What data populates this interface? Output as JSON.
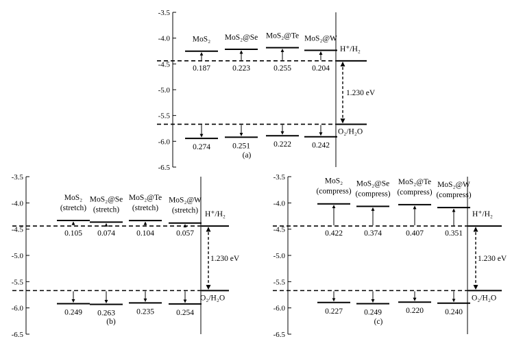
{
  "chart_data": [
    {
      "type": "band-edge diagram",
      "caption": "(a)",
      "y_ticks": [
        "-3.5",
        "-4.0",
        "-4.5",
        "-5.0",
        "-5.5",
        "-6.0",
        "-6.5"
      ],
      "ylim": [
        -6.5,
        -3.5
      ],
      "h_ref_label": "H⁺/H₂",
      "o_ref_label": "O₂/H₂O",
      "h_ref_level": -4.44,
      "o_ref_level": -5.67,
      "gap_label": "1.230 eV",
      "materials": [
        {
          "name": "MoS₂",
          "sub": "",
          "cb": -4.253,
          "vb": -5.944,
          "cb_offset": "0.187",
          "vb_offset": "0.274"
        },
        {
          "name": "MoS₂@Se",
          "sub": "",
          "cb": -4.217,
          "vb": -5.921,
          "cb_offset": "0.223",
          "vb_offset": "0.251"
        },
        {
          "name": "MoS₂@Te",
          "sub": "",
          "cb": -4.185,
          "vb": -5.892,
          "cb_offset": "0.255",
          "vb_offset": "0.222"
        },
        {
          "name": "MoS₂@W",
          "sub": "",
          "cb": -4.236,
          "vb": -5.912,
          "cb_offset": "0.204",
          "vb_offset": "0.242"
        }
      ]
    },
    {
      "type": "band-edge diagram",
      "caption": "(b)",
      "y_ticks": [
        "-3.5",
        "-4.0",
        "-4.5",
        "-5.0",
        "-5.5",
        "-6.0",
        "-6.5"
      ],
      "ylim": [
        -6.5,
        -3.5
      ],
      "h_ref_label": "H⁺/H₂",
      "o_ref_label": "O₂/H₂O",
      "h_ref_level": -4.44,
      "o_ref_level": -5.67,
      "gap_label": "1.230 eV",
      "materials": [
        {
          "name": "MoS₂",
          "sub": "(stretch)",
          "cb": -4.335,
          "vb": -5.919,
          "cb_offset": "0.105",
          "vb_offset": "0.249"
        },
        {
          "name": "MoS₂@Se",
          "sub": "(stretch)",
          "cb": -4.366,
          "vb": -5.933,
          "cb_offset": "0.074",
          "vb_offset": "0.263"
        },
        {
          "name": "MoS₂@Te",
          "sub": "(stretch)",
          "cb": -4.336,
          "vb": -5.905,
          "cb_offset": "0.104",
          "vb_offset": "0.235"
        },
        {
          "name": "MoS₂@W",
          "sub": "(stretch)",
          "cb": -4.383,
          "vb": -5.924,
          "cb_offset": "0.057",
          "vb_offset": "0.254"
        }
      ]
    },
    {
      "type": "band-edge diagram",
      "caption": "(c)",
      "y_ticks": [
        "-3.5",
        "-4.0",
        "-4.5",
        "-5.0",
        "-5.5",
        "-6.0",
        "-6.5"
      ],
      "ylim": [
        -6.5,
        -3.5
      ],
      "h_ref_label": "H⁺/H₂",
      "o_ref_label": "O₂/H₂O",
      "h_ref_level": -4.44,
      "o_ref_level": -5.67,
      "gap_label": "1.230 eV",
      "materials": [
        {
          "name": "MoS₂",
          "sub": "(compress)",
          "cb": -4.018,
          "vb": -5.897,
          "cb_offset": "0.422",
          "vb_offset": "0.227"
        },
        {
          "name": "MoS₂@Se",
          "sub": "(compress)",
          "cb": -4.066,
          "vb": -5.919,
          "cb_offset": "0.374",
          "vb_offset": "0.249"
        },
        {
          "name": "MoS₂@Te",
          "sub": "(compress)",
          "cb": -4.033,
          "vb": -5.89,
          "cb_offset": "0.407",
          "vb_offset": "0.220"
        },
        {
          "name": "MoS₂@W",
          "sub": "(compress)",
          "cb": -4.089,
          "vb": -5.91,
          "cb_offset": "0.351",
          "vb_offset": "0.240"
        }
      ]
    }
  ]
}
